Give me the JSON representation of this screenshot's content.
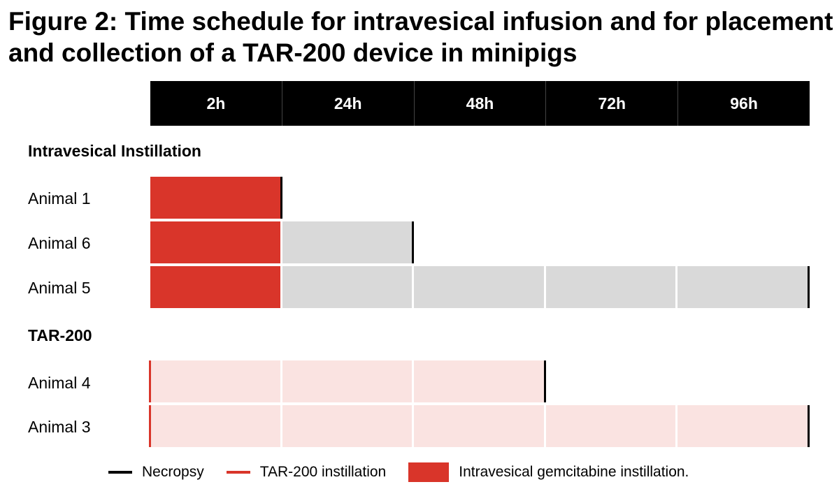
{
  "title": "Figure 2: Time schedule for intravesical infusion and for placement and collection of a TAR-200 device in minipigs",
  "header": [
    "2h",
    "24h",
    "48h",
    "72h",
    "96h"
  ],
  "sections": [
    {
      "label": "Intravesical  Instillation",
      "rows": [
        {
          "label": "Animal 1",
          "kind": "gem",
          "necropsy_period": "2h"
        },
        {
          "label": "Animal 6",
          "kind": "gem",
          "necropsy_period": "24h"
        },
        {
          "label": "Animal 5",
          "kind": "gem",
          "necropsy_period": "96h"
        }
      ]
    },
    {
      "label": "TAR-200",
      "rows": [
        {
          "label": "Animal 4",
          "kind": "tar",
          "necropsy_period": "48h"
        },
        {
          "label": "Animal 3",
          "kind": "tar",
          "necropsy_period": "96h"
        }
      ]
    }
  ],
  "legend": {
    "necropsy": "Necropsy",
    "tar": "TAR-200 instillation",
    "gem": "Intravesical gemcitabine instillation."
  },
  "colors": {
    "gemcitabine": "#d9352a",
    "followup": "#d9d9d9",
    "tar_device": "#fae3e1",
    "necropsy": "#000000",
    "header_bg": "#000000"
  }
}
